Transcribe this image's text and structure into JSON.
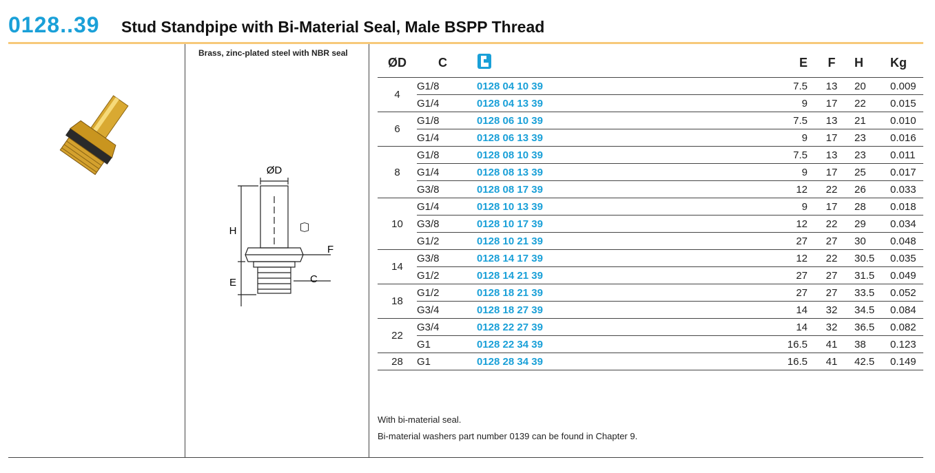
{
  "header": {
    "code": "0128..39",
    "title": "Stud Standpipe with Bi-Material Seal, Male BSPP Thread"
  },
  "material": "Brass, zinc-plated steel with NBR seal",
  "diagram": {
    "labels": [
      "ØD",
      "H",
      "F",
      "E",
      "C"
    ]
  },
  "table": {
    "columns": [
      "ØD",
      "C",
      "E",
      "F",
      "H",
      "Kg"
    ],
    "groups": [
      {
        "d": "4",
        "rows": [
          [
            "G1/8",
            "0128 04 10 39",
            "7.5",
            "13",
            "20",
            "0.009"
          ],
          [
            "G1/4",
            "0128 04 13 39",
            "9",
            "17",
            "22",
            "0.015"
          ]
        ]
      },
      {
        "d": "6",
        "rows": [
          [
            "G1/8",
            "0128 06 10 39",
            "7.5",
            "13",
            "21",
            "0.010"
          ],
          [
            "G1/4",
            "0128 06 13 39",
            "9",
            "17",
            "23",
            "0.016"
          ]
        ]
      },
      {
        "d": "8",
        "rows": [
          [
            "G1/8",
            "0128 08 10 39",
            "7.5",
            "13",
            "23",
            "0.011"
          ],
          [
            "G1/4",
            "0128 08 13 39",
            "9",
            "17",
            "25",
            "0.017"
          ],
          [
            "G3/8",
            "0128 08 17 39",
            "12",
            "22",
            "26",
            "0.033"
          ]
        ]
      },
      {
        "d": "10",
        "rows": [
          [
            "G1/4",
            "0128 10 13 39",
            "9",
            "17",
            "28",
            "0.018"
          ],
          [
            "G3/8",
            "0128 10 17 39",
            "12",
            "22",
            "29",
            "0.034"
          ],
          [
            "G1/2",
            "0128 10 21 39",
            "27",
            "27",
            "30",
            "0.048"
          ]
        ]
      },
      {
        "d": "14",
        "rows": [
          [
            "G3/8",
            "0128 14 17 39",
            "12",
            "22",
            "30.5",
            "0.035"
          ],
          [
            "G1/2",
            "0128 14 21 39",
            "27",
            "27",
            "31.5",
            "0.049"
          ]
        ]
      },
      {
        "d": "18",
        "rows": [
          [
            "G1/2",
            "0128 18 21 39",
            "27",
            "27",
            "33.5",
            "0.052"
          ],
          [
            "G3/4",
            "0128 18 27 39",
            "14",
            "32",
            "34.5",
            "0.084"
          ]
        ]
      },
      {
        "d": "22",
        "rows": [
          [
            "G3/4",
            "0128 22 27 39",
            "14",
            "32",
            "36.5",
            "0.082"
          ],
          [
            "G1",
            "0128 22 34 39",
            "16.5",
            "41",
            "38",
            "0.123"
          ]
        ]
      },
      {
        "d": "28",
        "rows": [
          [
            "G1",
            "0128 28 34 39",
            "16.5",
            "41",
            "42.5",
            "0.149"
          ]
        ]
      }
    ]
  },
  "notes": [
    "With bi-material seal.",
    "Bi-material washers part number 0139 can be found in Chapter 9."
  ]
}
